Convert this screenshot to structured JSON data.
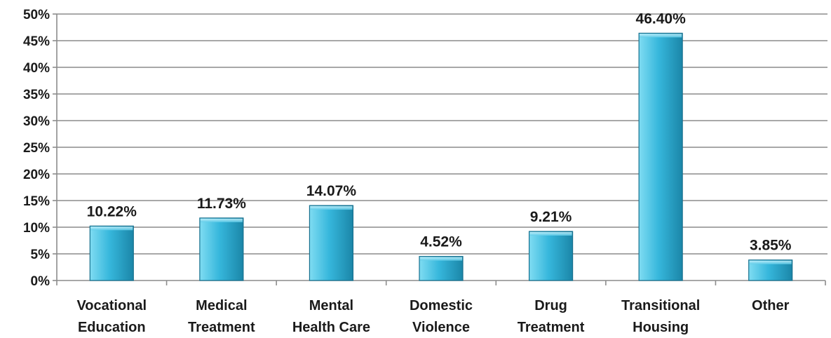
{
  "chart_data": {
    "type": "bar",
    "categories": [
      [
        "Vocational",
        "Education"
      ],
      [
        "Medical",
        "Treatment"
      ],
      [
        "Mental",
        "Health Care"
      ],
      [
        "Domestic",
        "Violence"
      ],
      [
        "Drug",
        "Treatment"
      ],
      [
        "Transitional",
        "Housing"
      ],
      [
        "Other"
      ]
    ],
    "values": [
      10.22,
      11.73,
      14.07,
      4.52,
      9.21,
      46.4,
      3.85
    ],
    "data_labels": [
      "10.22%",
      "11.73%",
      "14.07%",
      "4.52%",
      "9.21%",
      "46.40%",
      "3.85%"
    ],
    "y_ticks": [
      0,
      5,
      10,
      15,
      20,
      25,
      30,
      35,
      40,
      45,
      50
    ],
    "y_tick_labels": [
      "0%",
      "5%",
      "10%",
      "15%",
      "20%",
      "25%",
      "30%",
      "35%",
      "40%",
      "45%",
      "50%"
    ],
    "ylim": [
      0,
      50
    ],
    "grid": true,
    "legend": "none",
    "colors": {
      "bar_light": "#7fdcf2",
      "bar_mid": "#36b7dc",
      "bar_dark": "#1b86a8",
      "bar_edge": "#17708e",
      "grid": "#8c8c8c",
      "axis": "#8c8c8c"
    }
  }
}
